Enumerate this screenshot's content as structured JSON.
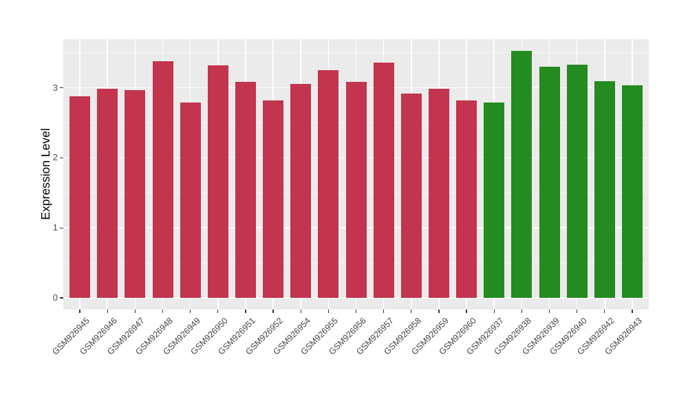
{
  "chart_data": {
    "type": "bar",
    "title": "",
    "xlabel": "",
    "ylabel": "Expression Level",
    "ylim": [
      0,
      3.7
    ],
    "yticks": [
      0,
      1,
      2,
      3
    ],
    "yminorticks": [
      0.5,
      1.5,
      2.5,
      3.5
    ],
    "grid": "white major and minor gridlines on grey panel",
    "legend_position": "none",
    "bars": [
      {
        "label": "GSM926945",
        "value": 2.88,
        "group": "red"
      },
      {
        "label": "GSM926946",
        "value": 2.99,
        "group": "red"
      },
      {
        "label": "GSM926947",
        "value": 2.97,
        "group": "red"
      },
      {
        "label": "GSM926948",
        "value": 3.38,
        "group": "red"
      },
      {
        "label": "GSM926949",
        "value": 2.79,
        "group": "red"
      },
      {
        "label": "GSM926950",
        "value": 3.32,
        "group": "red"
      },
      {
        "label": "GSM926951",
        "value": 3.09,
        "group": "red"
      },
      {
        "label": "GSM926952",
        "value": 2.82,
        "group": "red"
      },
      {
        "label": "GSM926954",
        "value": 3.06,
        "group": "red"
      },
      {
        "label": "GSM926955",
        "value": 3.25,
        "group": "red"
      },
      {
        "label": "GSM926956",
        "value": 3.09,
        "group": "red"
      },
      {
        "label": "GSM926957",
        "value": 3.36,
        "group": "red"
      },
      {
        "label": "GSM926958",
        "value": 2.92,
        "group": "red"
      },
      {
        "label": "GSM926959",
        "value": 2.99,
        "group": "red"
      },
      {
        "label": "GSM926960",
        "value": 2.82,
        "group": "red"
      },
      {
        "label": "GSM926937",
        "value": 2.79,
        "group": "green"
      },
      {
        "label": "GSM926938",
        "value": 3.53,
        "group": "green"
      },
      {
        "label": "GSM926939",
        "value": 3.3,
        "group": "green"
      },
      {
        "label": "GSM926940",
        "value": 3.33,
        "group": "green"
      },
      {
        "label": "GSM926942",
        "value": 3.1,
        "group": "green"
      },
      {
        "label": "GSM926943",
        "value": 3.04,
        "group": "green"
      }
    ],
    "group_colors": {
      "red": "#C3344E",
      "green": "#248B21"
    }
  },
  "colors": {
    "panel_bg": "#EBEBEB",
    "grid_major": "#FFFFFF",
    "axis_text": "#4D4D4D",
    "axis_title": "#000000",
    "tick_mark": "#333333",
    "background": "#FFFFFF"
  }
}
